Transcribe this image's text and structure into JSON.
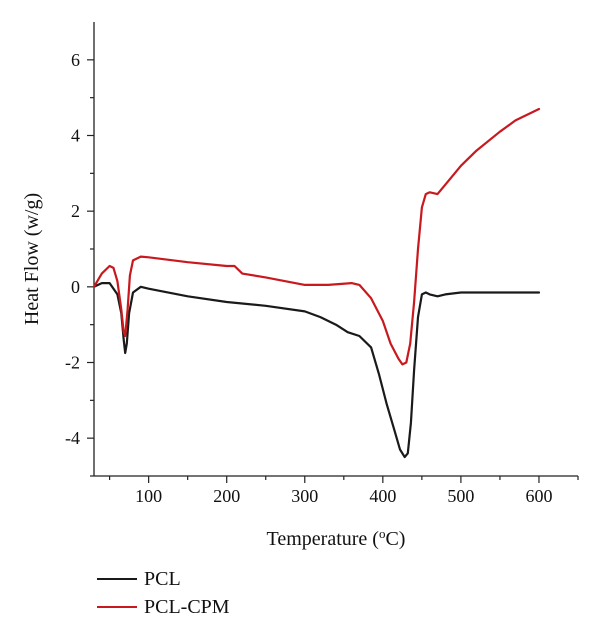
{
  "chart_data": {
    "type": "line",
    "title": "",
    "xlabel": "Temperature (",
    "xlabel_sup": "o",
    "xlabel_unit": "C)",
    "ylabel": "Heat Flow (w/g)",
    "xlim": [
      30,
      650
    ],
    "ylim": [
      -5,
      7
    ],
    "xticks": [
      100,
      200,
      300,
      400,
      500,
      600
    ],
    "yticks": [
      -4,
      -2,
      0,
      2,
      4,
      6
    ],
    "grid": false,
    "legend_position": "bottom-left",
    "series": [
      {
        "name": "PCL",
        "color": "#1a1a1a",
        "x": [
          30,
          40,
          50,
          60,
          65,
          68,
          70,
          72,
          75,
          80,
          90,
          100,
          150,
          200,
          250,
          300,
          320,
          340,
          355,
          370,
          385,
          395,
          405,
          415,
          422,
          428,
          432,
          436,
          440,
          445,
          450,
          455,
          460,
          470,
          480,
          500,
          550,
          600
        ],
        "y": [
          0.0,
          0.1,
          0.1,
          -0.2,
          -0.7,
          -1.4,
          -1.75,
          -1.5,
          -0.7,
          -0.15,
          0.0,
          -0.05,
          -0.25,
          -0.4,
          -0.5,
          -0.65,
          -0.8,
          -1.0,
          -1.2,
          -1.3,
          -1.6,
          -2.3,
          -3.1,
          -3.8,
          -4.3,
          -4.5,
          -4.4,
          -3.6,
          -2.2,
          -0.8,
          -0.2,
          -0.15,
          -0.2,
          -0.25,
          -0.2,
          -0.15,
          -0.15,
          -0.15
        ]
      },
      {
        "name": "PCL-CPM",
        "color": "#c8191e",
        "x": [
          30,
          40,
          50,
          55,
          60,
          65,
          68,
          70,
          73,
          76,
          80,
          90,
          100,
          150,
          200,
          210,
          220,
          250,
          300,
          330,
          360,
          370,
          385,
          400,
          410,
          420,
          425,
          430,
          435,
          440,
          445,
          450,
          455,
          460,
          470,
          480,
          500,
          520,
          550,
          570,
          600
        ],
        "y": [
          0.0,
          0.35,
          0.55,
          0.5,
          0.15,
          -0.6,
          -1.2,
          -1.3,
          -0.6,
          0.3,
          0.7,
          0.8,
          0.78,
          0.65,
          0.55,
          0.55,
          0.35,
          0.25,
          0.05,
          0.05,
          0.1,
          0.05,
          -0.3,
          -0.9,
          -1.5,
          -1.9,
          -2.05,
          -2.0,
          -1.5,
          -0.4,
          1.0,
          2.1,
          2.45,
          2.5,
          2.45,
          2.7,
          3.2,
          3.6,
          4.1,
          4.4,
          4.7
        ]
      }
    ]
  }
}
